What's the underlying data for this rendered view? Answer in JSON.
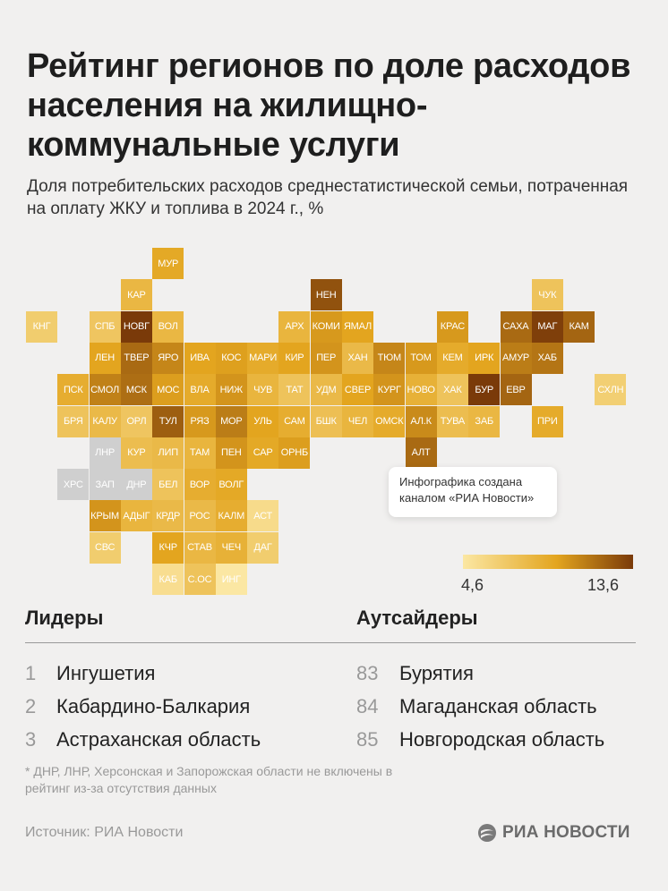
{
  "header": {
    "title": "Рейтинг регионов по доле расходов населения на жилищно-коммунальные услуги",
    "subtitle": "Доля потребительских расходов среднестатистической семьи, потраченная на оплату ЖКУ и топлива в 2024 г., %"
  },
  "note": "Инфографика создана каналом «РИА Новости»",
  "scale": {
    "min_label": "4,6",
    "max_label": "13,6",
    "min": 4.6,
    "max": 13.6,
    "color_low": "#fbe7a3",
    "color_mid": "#e3a51f",
    "color_high": "#7a3a09",
    "no_data_color": "#cfcfcf"
  },
  "map_tiles": [
    {
      "label": "МУР",
      "col": 5,
      "row": 0,
      "level": 0.52
    },
    {
      "label": "КАР",
      "col": 4,
      "row": 1,
      "level": 0.4
    },
    {
      "label": "НЕН",
      "col": 10,
      "row": 1,
      "level": 0.9
    },
    {
      "label": "ЧУК",
      "col": 17,
      "row": 1,
      "level": 0.3
    },
    {
      "label": "КНГ",
      "col": 1,
      "row": 2,
      "level": 0.22
    },
    {
      "label": "СПБ",
      "col": 3,
      "row": 2,
      "level": 0.28
    },
    {
      "label": "НОВГ",
      "col": 4,
      "row": 2,
      "level": 1.0
    },
    {
      "label": "ВОЛ",
      "col": 5,
      "row": 2,
      "level": 0.4
    },
    {
      "label": "АРХ",
      "col": 9,
      "row": 2,
      "level": 0.42
    },
    {
      "label": "КОМИ",
      "col": 10,
      "row": 2,
      "level": 0.6
    },
    {
      "label": "ЯМАЛ",
      "col": 11,
      "row": 2,
      "level": 0.55
    },
    {
      "label": "КРАС",
      "col": 14,
      "row": 2,
      "level": 0.6
    },
    {
      "label": "САХА",
      "col": 16,
      "row": 2,
      "level": 0.8
    },
    {
      "label": "МАГ",
      "col": 17,
      "row": 2,
      "level": 0.98
    },
    {
      "label": "КАМ",
      "col": 18,
      "row": 2,
      "level": 0.82
    },
    {
      "label": "ЛЕН",
      "col": 3,
      "row": 3,
      "level": 0.55
    },
    {
      "label": "ТВЕР",
      "col": 4,
      "row": 3,
      "level": 0.8
    },
    {
      "label": "ЯРО",
      "col": 5,
      "row": 3,
      "level": 0.68
    },
    {
      "label": "ИВА",
      "col": 6,
      "row": 3,
      "level": 0.55
    },
    {
      "label": "КОС",
      "col": 7,
      "row": 3,
      "level": 0.57
    },
    {
      "label": "МАРИ",
      "col": 8,
      "row": 3,
      "level": 0.5
    },
    {
      "label": "КИР",
      "col": 9,
      "row": 3,
      "level": 0.55
    },
    {
      "label": "ПЕР",
      "col": 10,
      "row": 3,
      "level": 0.62
    },
    {
      "label": "ХАН",
      "col": 11,
      "row": 3,
      "level": 0.38
    },
    {
      "label": "ТЮМ",
      "col": 12,
      "row": 3,
      "level": 0.68
    },
    {
      "label": "ТОМ",
      "col": 13,
      "row": 3,
      "level": 0.6
    },
    {
      "label": "КЕМ",
      "col": 14,
      "row": 3,
      "level": 0.5
    },
    {
      "label": "ИРК",
      "col": 15,
      "row": 3,
      "level": 0.55
    },
    {
      "label": "АМУР",
      "col": 16,
      "row": 3,
      "level": 0.72
    },
    {
      "label": "ХАБ",
      "col": 17,
      "row": 3,
      "level": 0.75
    },
    {
      "label": "ПСК",
      "col": 2,
      "row": 4,
      "level": 0.48
    },
    {
      "label": "СМОЛ",
      "col": 3,
      "row": 4,
      "level": 0.7
    },
    {
      "label": "МСК",
      "col": 4,
      "row": 4,
      "level": 0.78
    },
    {
      "label": "МОС",
      "col": 5,
      "row": 4,
      "level": 0.58
    },
    {
      "label": "ВЛА",
      "col": 6,
      "row": 4,
      "level": 0.5
    },
    {
      "label": "НИЖ",
      "col": 7,
      "row": 4,
      "level": 0.62
    },
    {
      "label": "ЧУВ",
      "col": 8,
      "row": 4,
      "level": 0.42
    },
    {
      "label": "ТАТ",
      "col": 9,
      "row": 4,
      "level": 0.3
    },
    {
      "label": "УДМ",
      "col": 10,
      "row": 4,
      "level": 0.38
    },
    {
      "label": "СВЕР",
      "col": 11,
      "row": 4,
      "level": 0.55
    },
    {
      "label": "КУРГ",
      "col": 12,
      "row": 4,
      "level": 0.62
    },
    {
      "label": "НОВО",
      "col": 13,
      "row": 4,
      "level": 0.45
    },
    {
      "label": "ХАК",
      "col": 14,
      "row": 4,
      "level": 0.3
    },
    {
      "label": "БУР",
      "col": 15,
      "row": 4,
      "level": 1.0
    },
    {
      "label": "ЕВР",
      "col": 16,
      "row": 4,
      "level": 0.82
    },
    {
      "label": "СХЛН",
      "col": 19,
      "row": 4,
      "level": 0.2
    },
    {
      "label": "БРЯ",
      "col": 2,
      "row": 5,
      "level": 0.3
    },
    {
      "label": "КАЛУ",
      "col": 3,
      "row": 5,
      "level": 0.38
    },
    {
      "label": "ОРЛ",
      "col": 4,
      "row": 5,
      "level": 0.28
    },
    {
      "label": "ТУЛ",
      "col": 5,
      "row": 5,
      "level": 0.85
    },
    {
      "label": "РЯЗ",
      "col": 6,
      "row": 5,
      "level": 0.6
    },
    {
      "label": "МОР",
      "col": 7,
      "row": 5,
      "level": 0.72
    },
    {
      "label": "УЛЬ",
      "col": 8,
      "row": 5,
      "level": 0.55
    },
    {
      "label": "САМ",
      "col": 9,
      "row": 5,
      "level": 0.48
    },
    {
      "label": "БШК",
      "col": 10,
      "row": 5,
      "level": 0.33
    },
    {
      "label": "ЧЕЛ",
      "col": 11,
      "row": 5,
      "level": 0.42
    },
    {
      "label": "ОМСК",
      "col": 12,
      "row": 5,
      "level": 0.5
    },
    {
      "label": "АЛ.К",
      "col": 13,
      "row": 5,
      "level": 0.66
    },
    {
      "label": "ТУВА",
      "col": 14,
      "row": 5,
      "level": 0.35
    },
    {
      "label": "ЗАБ",
      "col": 15,
      "row": 5,
      "level": 0.4
    },
    {
      "label": "ПРИ",
      "col": 17,
      "row": 5,
      "level": 0.5
    },
    {
      "label": "ЛНР",
      "col": 3,
      "row": 6,
      "level": -1
    },
    {
      "label": "КУР",
      "col": 4,
      "row": 6,
      "level": 0.35
    },
    {
      "label": "ЛИП",
      "col": 5,
      "row": 6,
      "level": 0.38
    },
    {
      "label": "ТАМ",
      "col": 6,
      "row": 6,
      "level": 0.42
    },
    {
      "label": "ПЕН",
      "col": 7,
      "row": 6,
      "level": 0.62
    },
    {
      "label": "САР",
      "col": 8,
      "row": 6,
      "level": 0.52
    },
    {
      "label": "ОРНБ",
      "col": 9,
      "row": 6,
      "level": 0.58
    },
    {
      "label": "АЛТ",
      "col": 13,
      "row": 6,
      "level": 0.8
    },
    {
      "label": "ХРС",
      "col": 2,
      "row": 7,
      "level": -1
    },
    {
      "label": "ЗАП",
      "col": 3,
      "row": 7,
      "level": -1
    },
    {
      "label": "ДНР",
      "col": 4,
      "row": 7,
      "level": -1
    },
    {
      "label": "БЕЛ",
      "col": 5,
      "row": 7,
      "level": 0.3
    },
    {
      "label": "ВОР",
      "col": 6,
      "row": 7,
      "level": 0.48
    },
    {
      "label": "ВОЛГ",
      "col": 7,
      "row": 7,
      "level": 0.52
    },
    {
      "label": "КРЫМ",
      "col": 3,
      "row": 8,
      "level": 0.62
    },
    {
      "label": "АДЫГ",
      "col": 4,
      "row": 8,
      "level": 0.42
    },
    {
      "label": "КРДР",
      "col": 5,
      "row": 8,
      "level": 0.38
    },
    {
      "label": "РОС",
      "col": 6,
      "row": 8,
      "level": 0.38
    },
    {
      "label": "КАЛМ",
      "col": 7,
      "row": 8,
      "level": 0.48
    },
    {
      "label": "АСТ",
      "col": 8,
      "row": 8,
      "level": 0.1
    },
    {
      "label": "СВС",
      "col": 3,
      "row": 9,
      "level": 0.22
    },
    {
      "label": "КЧР",
      "col": 5,
      "row": 9,
      "level": 0.55
    },
    {
      "label": "СТАВ",
      "col": 6,
      "row": 9,
      "level": 0.4
    },
    {
      "label": "ЧЕЧ",
      "col": 7,
      "row": 9,
      "level": 0.45
    },
    {
      "label": "ДАГ",
      "col": 8,
      "row": 9,
      "level": 0.22
    },
    {
      "label": "КАБ",
      "col": 5,
      "row": 10,
      "level": 0.08
    },
    {
      "label": "С.ОС",
      "col": 6,
      "row": 10,
      "level": 0.3
    },
    {
      "label": "ИНГ",
      "col": 7,
      "row": 10,
      "level": 0.0
    }
  ],
  "leaders": {
    "heading": "Лидеры",
    "items": [
      {
        "rank": "1",
        "name": "Ингушетия"
      },
      {
        "rank": "2",
        "name": "Кабардино-Балкария"
      },
      {
        "rank": "3",
        "name": "Астраханская область"
      }
    ]
  },
  "outsiders": {
    "heading": "Аутсайдеры",
    "items": [
      {
        "rank": "83",
        "name": "Бурятия"
      },
      {
        "rank": "84",
        "name": "Магаданская область"
      },
      {
        "rank": "85",
        "name": "Новгородская область"
      }
    ]
  },
  "footnote": "* ДНР, ЛНР, Херсонская и Запорожская области не включены в рейтинг из-за отсутствия данных",
  "source": "Источник: РИА Новости",
  "logo": {
    "text": "РИА НОВОСТИ",
    "icon": "ria-logo-icon"
  }
}
